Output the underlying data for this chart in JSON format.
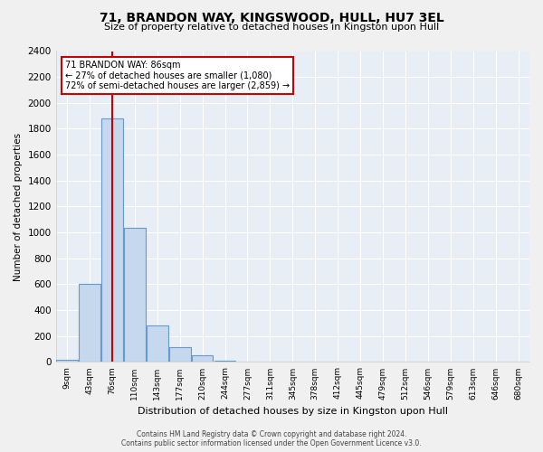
{
  "title": "71, BRANDON WAY, KINGSWOOD, HULL, HU7 3EL",
  "subtitle": "Size of property relative to detached houses in Kingston upon Hull",
  "xlabel": "Distribution of detached houses by size in Kingston upon Hull",
  "ylabel": "Number of detached properties",
  "bar_labels": [
    "9sqm",
    "43sqm",
    "76sqm",
    "110sqm",
    "143sqm",
    "177sqm",
    "210sqm",
    "244sqm",
    "277sqm",
    "311sqm",
    "345sqm",
    "378sqm",
    "412sqm",
    "445sqm",
    "479sqm",
    "512sqm",
    "546sqm",
    "579sqm",
    "613sqm",
    "646sqm",
    "680sqm"
  ],
  "bar_values": [
    20,
    600,
    1880,
    1035,
    285,
    115,
    50,
    10,
    5,
    0,
    0,
    0,
    0,
    0,
    0,
    0,
    0,
    0,
    0,
    0,
    0
  ],
  "bar_color": "#c5d8ed",
  "bar_edge_color": "#6699cc",
  "annotation_title": "71 BRANDON WAY: 86sqm",
  "annotation_line1": "← 27% of detached houses are smaller (1,080)",
  "annotation_line2": "72% of semi-detached houses are larger (2,859) →",
  "vline_color": "#cc0000",
  "vline_x": 2.0,
  "ylim": [
    0,
    2400
  ],
  "yticks": [
    0,
    200,
    400,
    600,
    800,
    1000,
    1200,
    1400,
    1600,
    1800,
    2000,
    2200,
    2400
  ],
  "footer_line1": "Contains HM Land Registry data © Crown copyright and database right 2024.",
  "footer_line2": "Contains public sector information licensed under the Open Government Licence v3.0.",
  "plot_bg_color": "#e8eef5",
  "fig_bg_color": "#f0f0f0",
  "grid_color": "#ffffff"
}
